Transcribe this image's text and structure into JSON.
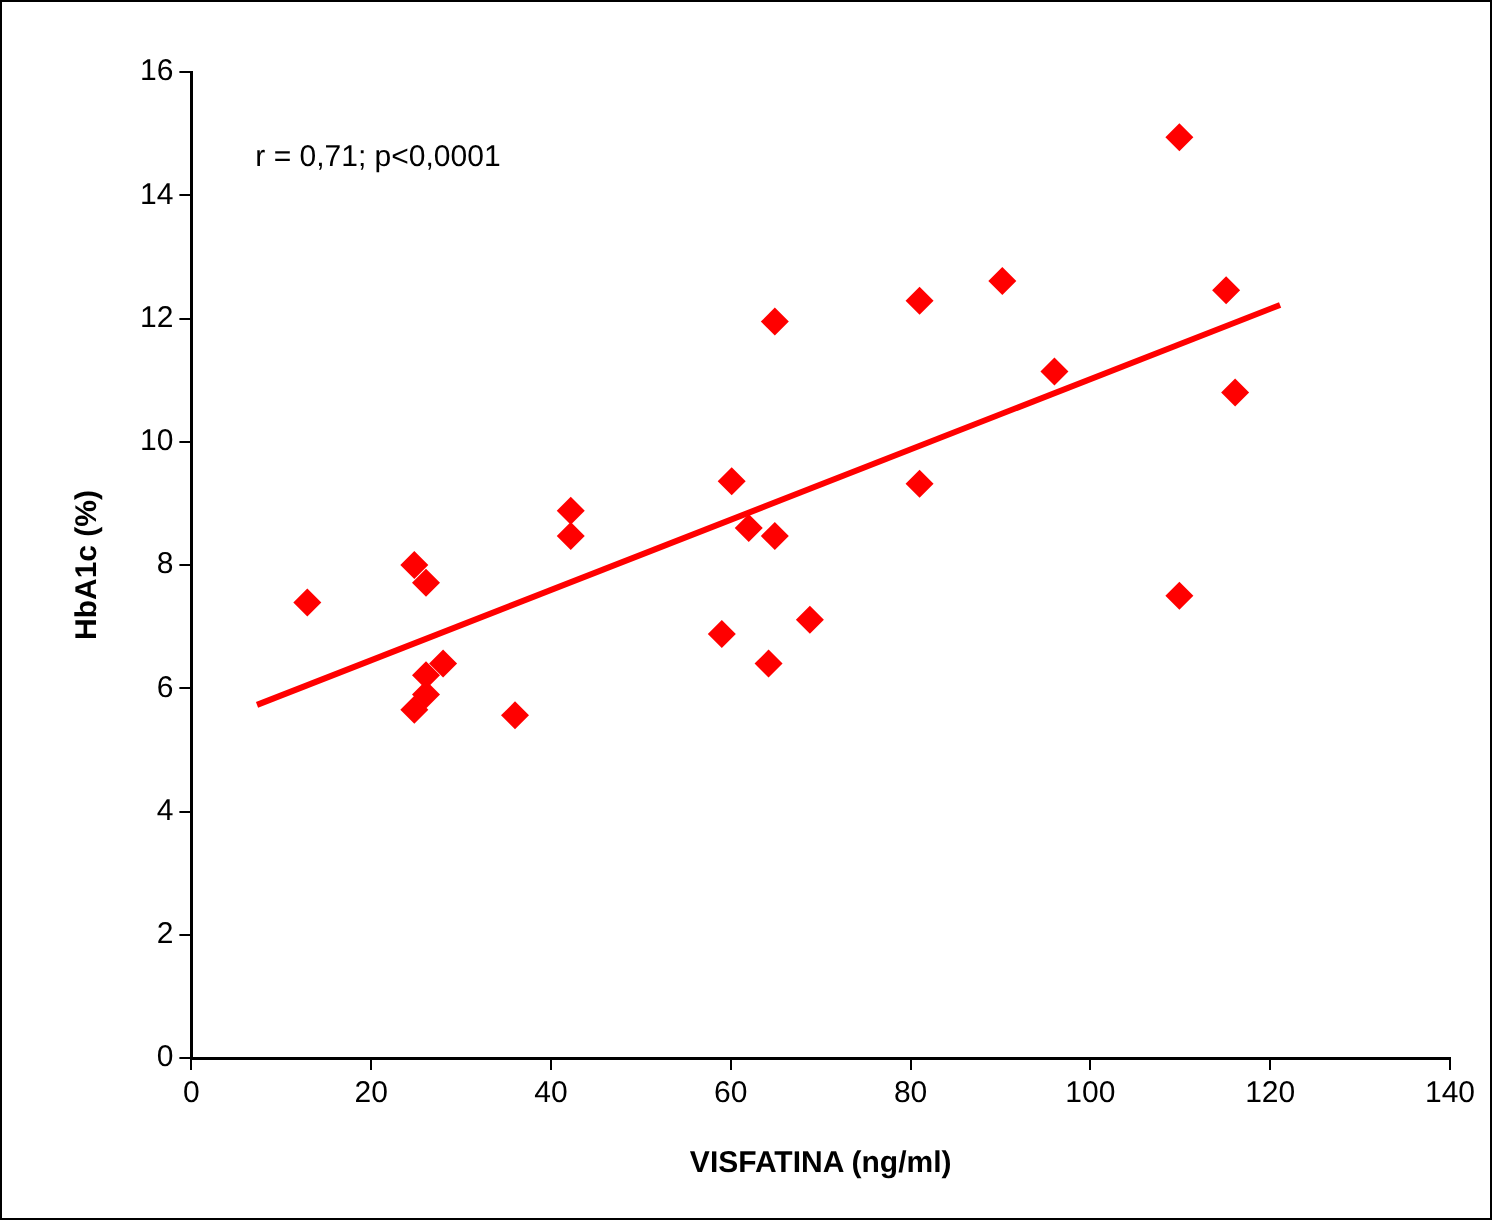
{
  "chart_data": {
    "type": "scatter",
    "xlabel": "VISFATINA (ng/ml)",
    "ylabel": "HbA1c (%)",
    "annotations": [
      "r = 0,71; p<0,0001"
    ],
    "xlim": [
      0,
      140
    ],
    "xticks": [
      0,
      20,
      40,
      60,
      80,
      100,
      120,
      140
    ],
    "ylim": [
      0,
      16
    ],
    "yticks": [
      0,
      2,
      4,
      6,
      8,
      10,
      12,
      14,
      16
    ],
    "grid": false,
    "legend": false,
    "marker": "diamond",
    "series": [
      {
        "color": "#ff0000",
        "x": [
          12.9,
          24.8,
          26.1,
          24.8,
          26.1,
          26.1,
          28.0,
          36.0,
          42.2,
          42.2,
          60.1,
          59.0,
          62.0,
          64.9,
          64.9,
          64.2,
          68.8,
          81.0,
          81.0,
          90.2,
          96.0,
          109.9,
          109.9,
          115.1,
          116.1
        ],
        "values": [
          7.39,
          8.0,
          7.71,
          5.65,
          5.9,
          6.21,
          6.4,
          5.56,
          8.88,
          8.47,
          9.36,
          6.88,
          8.6,
          8.47,
          11.95,
          6.4,
          7.11,
          12.29,
          9.32,
          12.61,
          11.14,
          14.94,
          7.5,
          12.46,
          10.8
        ]
      },
      {
        "type": "line",
        "color": "#ff0000",
        "marker": "none",
        "x": [
          7.3,
          121.1
        ],
        "values": [
          5.73,
          12.22
        ]
      }
    ]
  }
}
